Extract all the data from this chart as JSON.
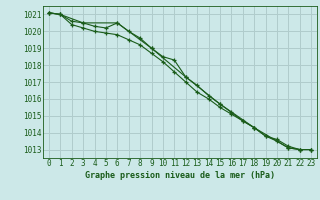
{
  "title": "Graphe pression niveau de la mer (hPa)",
  "background_color": "#cce8e8",
  "grid_color": "#b0cccc",
  "line_color": "#1a5c1a",
  "xlim": [
    -0.5,
    23.5
  ],
  "ylim": [
    1012.5,
    1021.5
  ],
  "yticks": [
    1013,
    1014,
    1015,
    1016,
    1017,
    1018,
    1019,
    1020,
    1021
  ],
  "xticks": [
    0,
    1,
    2,
    3,
    4,
    5,
    6,
    7,
    8,
    9,
    10,
    11,
    12,
    13,
    14,
    15,
    16,
    17,
    18,
    19,
    20,
    21,
    22,
    23
  ],
  "series1_x": [
    0,
    1,
    2,
    3,
    4,
    5,
    6,
    7,
    8,
    9,
    10,
    11,
    12,
    13,
    14,
    15,
    16,
    17,
    18,
    19,
    20,
    21,
    22,
    23
  ],
  "series1_y": [
    1021.1,
    1021.0,
    1020.6,
    1020.5,
    1020.3,
    1020.2,
    1020.5,
    1020.0,
    1019.6,
    1019.0,
    1018.5,
    1018.3,
    1017.3,
    1016.8,
    1016.2,
    1015.7,
    1015.2,
    1014.7,
    1014.3,
    1013.8,
    1013.5,
    1013.1,
    1013.0,
    1013.0
  ],
  "series2_x": [
    0,
    1,
    2,
    3,
    4,
    5,
    6,
    7,
    8,
    9,
    10,
    11,
    12,
    13,
    14,
    15,
    16,
    17,
    18,
    19,
    20,
    21,
    22,
    23
  ],
  "series2_y": [
    1021.1,
    1021.0,
    1020.4,
    1020.2,
    1020.0,
    1019.9,
    1019.8,
    1019.5,
    1019.2,
    1018.7,
    1018.2,
    1017.6,
    1017.0,
    1016.4,
    1016.0,
    1015.5,
    1015.1,
    1014.7,
    1014.3,
    1013.8,
    1013.6,
    1013.2,
    1013.0,
    1013.0
  ],
  "series3_x": [
    0,
    1,
    3,
    6,
    9,
    12,
    15,
    18,
    21,
    22,
    23
  ],
  "series3_y": [
    1021.1,
    1021.0,
    1020.5,
    1020.5,
    1019.0,
    1017.3,
    1015.7,
    1014.3,
    1013.1,
    1013.0,
    1013.0
  ]
}
